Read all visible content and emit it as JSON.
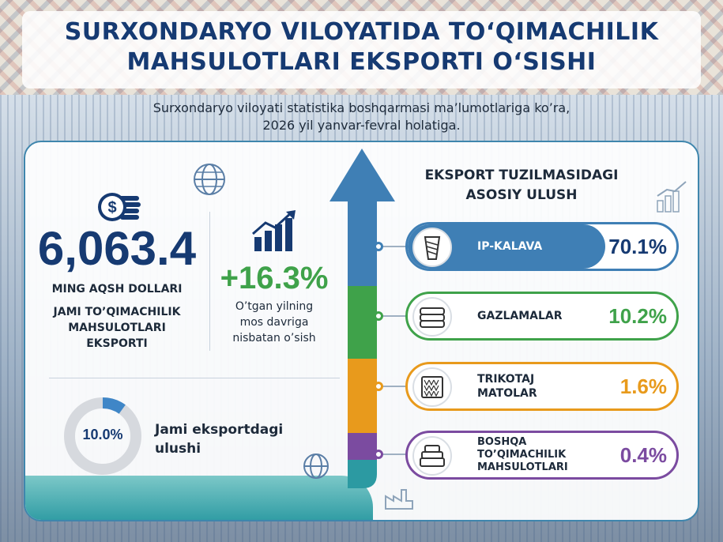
{
  "header": {
    "title_line1": "SURXONDARYO VILOYATIDA TO‘QIMACHILIK",
    "title_line2": "MAHSULOTLARI EKSPORTI O‘SISHI",
    "subtitle_line1": "Surxondaryo viloyati statistika boshqarmasi ma’lumotlariga ko’ra,",
    "subtitle_line2": "2026 yil yanvar-fevral holatiga."
  },
  "total": {
    "value": "6,063.4",
    "unit": "MING AQSH DOLLARI",
    "label_line1": "JAMI TO’QIMACHILIK",
    "label_line2": "MAHSULOTLARI",
    "label_line3": "EKSPORTI"
  },
  "growth": {
    "value": "+16.3%",
    "label_line1": "O’tgan yilning",
    "label_line2": "mos davriga",
    "label_line3": "nisbatan o’sish"
  },
  "share": {
    "value": "10.0%",
    "fraction": 0.1,
    "label_line1": "Jami eksportdagi",
    "label_line2": "ulushi"
  },
  "structure": {
    "title_line1": "EKSPORT TUZILMASIDAGI",
    "title_line2": "ASOSIY ULUSH",
    "items": [
      {
        "label_line1": "IP-KALAVA",
        "label_line2": "",
        "label_line3": "",
        "value": "70.1%",
        "share": 70.1,
        "color": "#3f7fb5",
        "icon": "yarn-spool-icon"
      },
      {
        "label_line1": "GAZLAMALAR",
        "label_line2": "",
        "label_line3": "",
        "value": "10.2%",
        "share": 10.2,
        "color": "#3fa24a",
        "icon": "fabric-stack-icon"
      },
      {
        "label_line1": "TRIKOTAJ",
        "label_line2": "MATOLAR",
        "label_line3": "",
        "value": "1.6%",
        "share": 1.6,
        "color": "#e89a1c",
        "icon": "knit-fabric-icon"
      },
      {
        "label_line1": "BOSHQA",
        "label_line2": "TO’QIMACHILIK",
        "label_line3": "MAHSULOTLARI",
        "value": "0.4%",
        "share": 0.4,
        "color": "#7b4ba0",
        "icon": "textile-products-icon"
      }
    ]
  },
  "colors": {
    "navy": "#163a72",
    "green": "#3fa24a",
    "blue": "#3f7fb5",
    "orange": "#e89a1c",
    "purple": "#7b4ba0",
    "teal": "#2c9aa2"
  }
}
